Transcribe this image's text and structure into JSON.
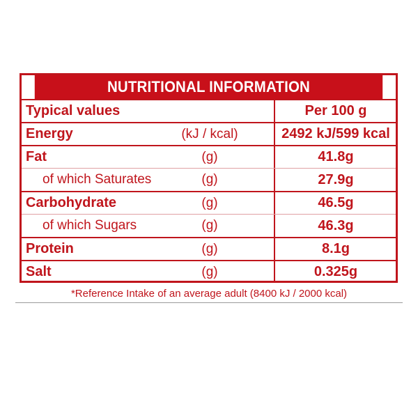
{
  "table": {
    "title": "NUTRITIONAL INFORMATION",
    "header_label": "Typical values",
    "header_value": "Per 100 g",
    "rows": [
      {
        "name": "Energy",
        "unit": "(kJ / kcal)",
        "value": "2492 kJ/599 kcal"
      },
      {
        "name": "Fat",
        "unit": "(g)",
        "value": "41.8g"
      },
      {
        "name": "of which Saturates",
        "unit": "(g)",
        "value": "27.9g"
      },
      {
        "name": "Carbohydrate",
        "unit": "(g)",
        "value": "46.5g"
      },
      {
        "name": "of which Sugars",
        "unit": "(g)",
        "value": "46.3g"
      },
      {
        "name": "Protein",
        "unit": "(g)",
        "value": "8.1g"
      },
      {
        "name": "Salt",
        "unit": "(g)",
        "value": "0.325g"
      }
    ]
  },
  "footnote": "*Reference Intake of an average adult (8400 kJ / 2000 kcal)",
  "colors": {
    "brand_red": "#c8101a",
    "text_red": "#c0151c",
    "background": "#ffffff"
  }
}
